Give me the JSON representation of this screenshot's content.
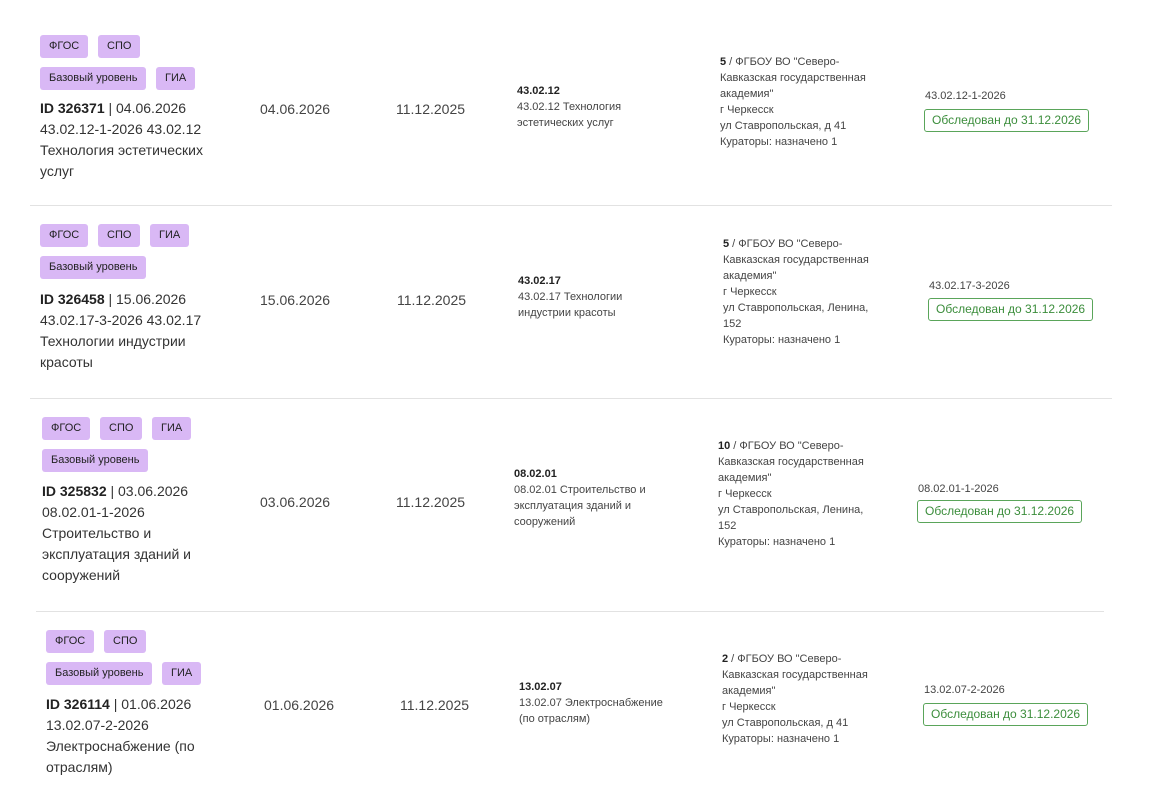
{
  "rows": [
    {
      "tags_line1": [
        "ФГОС",
        "СПО"
      ],
      "tags_line2": [
        "Базовый уровень",
        "ГИА"
      ],
      "id": "ID 326371",
      "id_suffix": " | 04.06.2026",
      "desc_lines": [
        "43.02.12-1-2026 43.02.12",
        "Технология эстетических",
        "услуг"
      ],
      "date1": "04.06.2026",
      "date2": "11.12.2025",
      "program_code": "43.02.12",
      "program_lines": [
        "43.02.12 Технология",
        "эстетических услуг"
      ],
      "org_count": "5",
      "org_lines": [
        " / ФГБОУ ВО \"Северо-",
        "Кавказская государственная",
        "академия\"",
        "г Черкесск",
        "ул Ставропольская, д 41",
        "Кураторы: назначено 1"
      ],
      "exam_code": "43.02.12-1-2026",
      "status": "Обследован до 31.12.2026"
    },
    {
      "tags_line1": [
        "ФГОС",
        "СПО",
        "ГИА"
      ],
      "tags_line2": [
        "Базовый уровень"
      ],
      "id": "ID 326458",
      "id_suffix": " | 15.06.2026",
      "desc_lines": [
        "43.02.17-3-2026 43.02.17",
        "Технологии индустрии",
        "красоты"
      ],
      "date1": "15.06.2026",
      "date2": "11.12.2025",
      "program_code": "43.02.17",
      "program_lines": [
        "43.02.17 Технологии",
        "индустрии красоты"
      ],
      "org_count": "5",
      "org_lines": [
        " / ФГБОУ ВО \"Северо-",
        "Кавказская государственная",
        "академия\"",
        "г Черкесск",
        "ул Ставропольская, Ленина,",
        "152",
        "Кураторы: назначено 1"
      ],
      "exam_code": "43.02.17-3-2026",
      "status": "Обследован до 31.12.2026"
    },
    {
      "tags_line1": [
        "ФГОС",
        "СПО",
        "ГИА"
      ],
      "tags_line2": [
        "Базовый уровень"
      ],
      "id": "ID 325832",
      "id_suffix": " | 03.06.2026",
      "desc_lines": [
        "08.02.01-1-2026",
        "Строительство и",
        "эксплуатация зданий и",
        "сооружений"
      ],
      "date1": "03.06.2026",
      "date2": "11.12.2025",
      "program_code": "08.02.01",
      "program_lines": [
        "08.02.01 Строительство и",
        "эксплуатация зданий и",
        "сооружений"
      ],
      "org_count": "10",
      "org_lines": [
        " / ФГБОУ ВО \"Северо-",
        "Кавказская государственная",
        "академия\"",
        "г Черкесск",
        "ул Ставропольская, Ленина,",
        "152",
        "Кураторы: назначено 1"
      ],
      "exam_code": "08.02.01-1-2026",
      "status": "Обследован до 31.12.2026"
    },
    {
      "tags_line1": [
        "ФГОС",
        "СПО"
      ],
      "tags_line2": [
        "Базовый уровень",
        "ГИА"
      ],
      "id": "ID 326114",
      "id_suffix": " | 01.06.2026",
      "desc_lines": [
        "13.02.07-2-2026",
        "Электроснабжение (по",
        "отраслям)"
      ],
      "date1": "01.06.2026",
      "date2": "11.12.2025",
      "program_code": "13.02.07",
      "program_lines": [
        "13.02.07 Электроснабжение",
        "(по отраслям)"
      ],
      "org_count": "2",
      "org_lines": [
        " / ФГБОУ ВО \"Северо-",
        "Кавказская государственная",
        "академия\"",
        "г Черкесск",
        "ул Ставропольская, д 41",
        "Кураторы: назначено 1"
      ],
      "exam_code": "13.02.07-2-2026",
      "status": "Обследован до 31.12.2026"
    }
  ]
}
